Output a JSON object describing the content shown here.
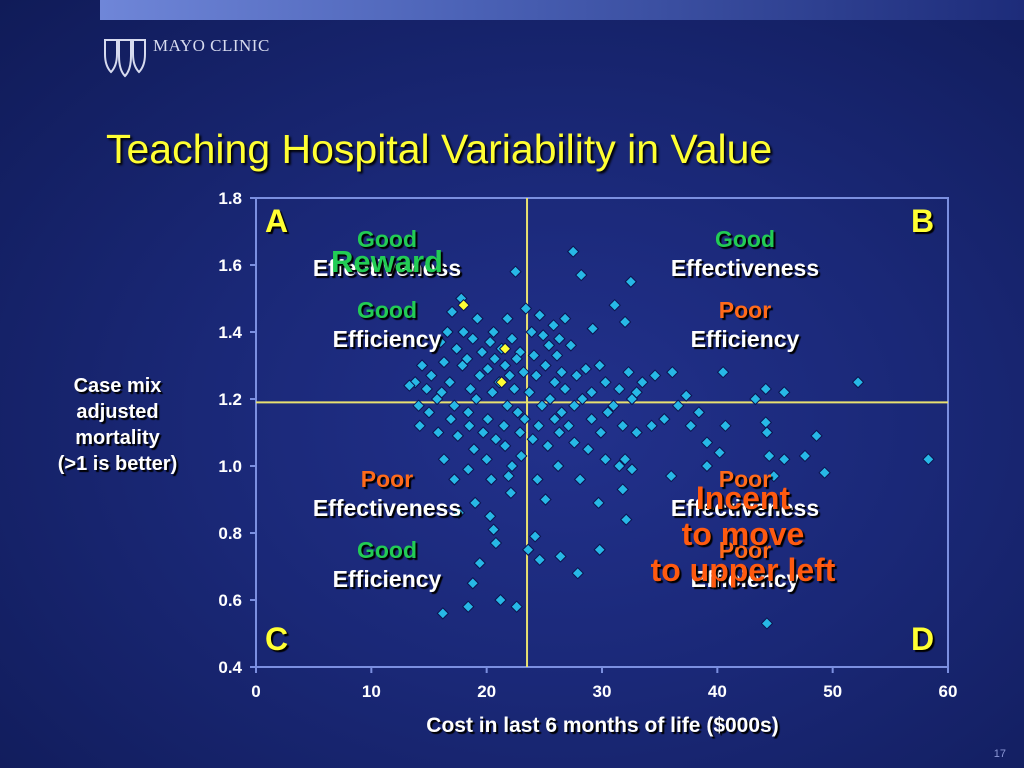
{
  "header": {
    "logo_text": "MAYO CLINIC",
    "title": "Teaching Hospital Variability in Value",
    "page_number": "17"
  },
  "colors": {
    "background": "#1a2877",
    "axis": "#7b8fe0",
    "marker": "#27b8e6",
    "highlight_marker": "#ffff33",
    "crosshair": "#e8e070",
    "title": "#ffff33",
    "good": "#22cc55",
    "poor": "#ff6a1a"
  },
  "quadrants": {
    "A": {
      "letter": "A",
      "effectiveness_rating": "Good",
      "effectiveness_label": "Effectiveness",
      "efficiency_rating": "Good",
      "efficiency_label": "Efficiency",
      "overlay": "Reward"
    },
    "B": {
      "letter": "B",
      "effectiveness_rating": "Good",
      "effectiveness_label": "Effectiveness",
      "efficiency_rating": "Poor",
      "efficiency_label": "Efficiency"
    },
    "C": {
      "letter": "C",
      "effectiveness_rating": "Poor",
      "effectiveness_label": "Effectiveness",
      "efficiency_rating": "Good",
      "efficiency_label": "Efficiency"
    },
    "D": {
      "letter": "D",
      "effectiveness_rating": "Poor",
      "effectiveness_label": "Effectiveness",
      "efficiency_rating": "Poor",
      "efficiency_label": "Efficiency",
      "overlay_line1": "Incent",
      "overlay_line2": "to move",
      "overlay_line3": "to upper left"
    }
  },
  "chart_data": {
    "type": "scatter",
    "title": "Teaching Hospital Variability in Value",
    "xlabel": "Cost in last 6 months of life ($000s)",
    "ylabel_lines": [
      "Case mix",
      "adjusted",
      "mortality",
      "(>1 is better)"
    ],
    "xlim": [
      0,
      60
    ],
    "ylim": [
      0.4,
      1.8
    ],
    "xticks": [
      "0",
      "10",
      "20",
      "30",
      "40",
      "50",
      "60"
    ],
    "yticks": [
      "0.4",
      "0.6",
      "0.8",
      "1.0",
      "1.2",
      "1.4",
      "1.6",
      "1.8"
    ],
    "reference_lines": {
      "x": 23.5,
      "y": 1.19
    },
    "grid": false,
    "series": [
      {
        "marker": "diamond",
        "points": [
          [
            27.5,
            1.64
          ],
          [
            22.5,
            1.58
          ],
          [
            28.2,
            1.57
          ],
          [
            32.5,
            1.55
          ],
          [
            17.8,
            1.5
          ],
          [
            31.1,
            1.48
          ],
          [
            23.4,
            1.47
          ],
          [
            24.6,
            1.45
          ],
          [
            21.8,
            1.44
          ],
          [
            17.0,
            1.46
          ],
          [
            19.2,
            1.44
          ],
          [
            26.8,
            1.44
          ],
          [
            32.0,
            1.43
          ],
          [
            25.8,
            1.42
          ],
          [
            29.2,
            1.41
          ],
          [
            16.6,
            1.4
          ],
          [
            18.0,
            1.4
          ],
          [
            20.6,
            1.4
          ],
          [
            22.2,
            1.38
          ],
          [
            23.9,
            1.4
          ],
          [
            24.9,
            1.39
          ],
          [
            26.3,
            1.38
          ],
          [
            18.8,
            1.38
          ],
          [
            20.3,
            1.37
          ],
          [
            16.0,
            1.37
          ],
          [
            21.3,
            1.35
          ],
          [
            25.4,
            1.36
          ],
          [
            27.3,
            1.36
          ],
          [
            22.9,
            1.34
          ],
          [
            17.4,
            1.35
          ],
          [
            19.6,
            1.34
          ],
          [
            24.1,
            1.33
          ],
          [
            26.1,
            1.33
          ],
          [
            20.7,
            1.32
          ],
          [
            22.6,
            1.32
          ],
          [
            18.3,
            1.32
          ],
          [
            29.8,
            1.3
          ],
          [
            16.3,
            1.31
          ],
          [
            21.6,
            1.3
          ],
          [
            25.1,
            1.3
          ],
          [
            28.6,
            1.29
          ],
          [
            14.4,
            1.3
          ],
          [
            17.9,
            1.3
          ],
          [
            20.1,
            1.29
          ],
          [
            23.2,
            1.28
          ],
          [
            26.5,
            1.28
          ],
          [
            32.3,
            1.28
          ],
          [
            36.1,
            1.28
          ],
          [
            40.5,
            1.28
          ],
          [
            15.2,
            1.27
          ],
          [
            19.4,
            1.27
          ],
          [
            22.0,
            1.27
          ],
          [
            24.3,
            1.27
          ],
          [
            27.8,
            1.27
          ],
          [
            34.6,
            1.27
          ],
          [
            13.8,
            1.25
          ],
          [
            16.8,
            1.25
          ],
          [
            21.1,
            1.25
          ],
          [
            25.9,
            1.25
          ],
          [
            30.3,
            1.25
          ],
          [
            33.5,
            1.25
          ],
          [
            52.2,
            1.25
          ],
          [
            14.8,
            1.23
          ],
          [
            18.6,
            1.23
          ],
          [
            22.4,
            1.23
          ],
          [
            26.8,
            1.23
          ],
          [
            31.5,
            1.23
          ],
          [
            44.2,
            1.23
          ],
          [
            45.8,
            1.22
          ],
          [
            13.3,
            1.24
          ],
          [
            16.1,
            1.22
          ],
          [
            20.5,
            1.22
          ],
          [
            23.7,
            1.22
          ],
          [
            29.1,
            1.22
          ],
          [
            33.0,
            1.22
          ],
          [
            37.3,
            1.21
          ],
          [
            15.7,
            1.2
          ],
          [
            19.1,
            1.2
          ],
          [
            25.5,
            1.2
          ],
          [
            28.3,
            1.2
          ],
          [
            32.6,
            1.2
          ],
          [
            43.3,
            1.2
          ],
          [
            14.1,
            1.18
          ],
          [
            17.2,
            1.18
          ],
          [
            21.8,
            1.18
          ],
          [
            24.8,
            1.18
          ],
          [
            27.6,
            1.18
          ],
          [
            31.0,
            1.18
          ],
          [
            36.6,
            1.18
          ],
          [
            15.0,
            1.16
          ],
          [
            18.4,
            1.16
          ],
          [
            22.7,
            1.16
          ],
          [
            26.5,
            1.16
          ],
          [
            30.5,
            1.16
          ],
          [
            38.4,
            1.16
          ],
          [
            16.9,
            1.14
          ],
          [
            20.1,
            1.14
          ],
          [
            23.3,
            1.14
          ],
          [
            25.9,
            1.14
          ],
          [
            29.1,
            1.14
          ],
          [
            35.4,
            1.14
          ],
          [
            44.2,
            1.13
          ],
          [
            14.2,
            1.12
          ],
          [
            18.5,
            1.12
          ],
          [
            21.5,
            1.12
          ],
          [
            24.5,
            1.12
          ],
          [
            27.1,
            1.12
          ],
          [
            31.8,
            1.12
          ],
          [
            34.3,
            1.12
          ],
          [
            37.7,
            1.12
          ],
          [
            40.7,
            1.12
          ],
          [
            15.8,
            1.1
          ],
          [
            19.7,
            1.1
          ],
          [
            22.9,
            1.1
          ],
          [
            26.3,
            1.1
          ],
          [
            29.9,
            1.1
          ],
          [
            33.0,
            1.1
          ],
          [
            44.3,
            1.1
          ],
          [
            48.6,
            1.09
          ],
          [
            17.5,
            1.09
          ],
          [
            20.8,
            1.08
          ],
          [
            24.0,
            1.08
          ],
          [
            27.6,
            1.07
          ],
          [
            39.1,
            1.07
          ],
          [
            21.6,
            1.06
          ],
          [
            25.3,
            1.06
          ],
          [
            28.8,
            1.05
          ],
          [
            18.9,
            1.05
          ],
          [
            40.2,
            1.04
          ],
          [
            47.6,
            1.03
          ],
          [
            44.5,
            1.03
          ],
          [
            23.0,
            1.03
          ],
          [
            30.3,
            1.02
          ],
          [
            32.0,
            1.02
          ],
          [
            45.8,
            1.02
          ],
          [
            58.3,
            1.02
          ],
          [
            16.3,
            1.02
          ],
          [
            20.0,
            1.02
          ],
          [
            22.2,
            1.0
          ],
          [
            26.2,
            1.0
          ],
          [
            31.5,
            1.0
          ],
          [
            39.1,
            1.0
          ],
          [
            18.4,
            0.99
          ],
          [
            32.6,
            0.99
          ],
          [
            49.3,
            0.98
          ],
          [
            21.9,
            0.97
          ],
          [
            24.4,
            0.96
          ],
          [
            17.2,
            0.96
          ],
          [
            20.4,
            0.96
          ],
          [
            28.1,
            0.96
          ],
          [
            36.0,
            0.97
          ],
          [
            44.9,
            0.97
          ],
          [
            31.8,
            0.93
          ],
          [
            22.1,
            0.92
          ],
          [
            25.1,
            0.9
          ],
          [
            19.0,
            0.89
          ],
          [
            29.7,
            0.89
          ],
          [
            17.6,
            0.86
          ],
          [
            20.3,
            0.85
          ],
          [
            32.1,
            0.84
          ],
          [
            20.6,
            0.81
          ],
          [
            24.2,
            0.79
          ],
          [
            20.8,
            0.77
          ],
          [
            23.6,
            0.75
          ],
          [
            29.8,
            0.75
          ],
          [
            26.4,
            0.73
          ],
          [
            24.6,
            0.72
          ],
          [
            19.4,
            0.71
          ],
          [
            27.9,
            0.68
          ],
          [
            18.8,
            0.65
          ],
          [
            21.2,
            0.6
          ],
          [
            22.6,
            0.58
          ],
          [
            16.2,
            0.56
          ],
          [
            18.4,
            0.58
          ],
          [
            44.3,
            0.53
          ]
        ]
      },
      {
        "marker": "diamond",
        "highlight": true,
        "points": [
          [
            18.0,
            1.48
          ],
          [
            21.6,
            1.35
          ],
          [
            21.3,
            1.25
          ]
        ]
      }
    ]
  }
}
